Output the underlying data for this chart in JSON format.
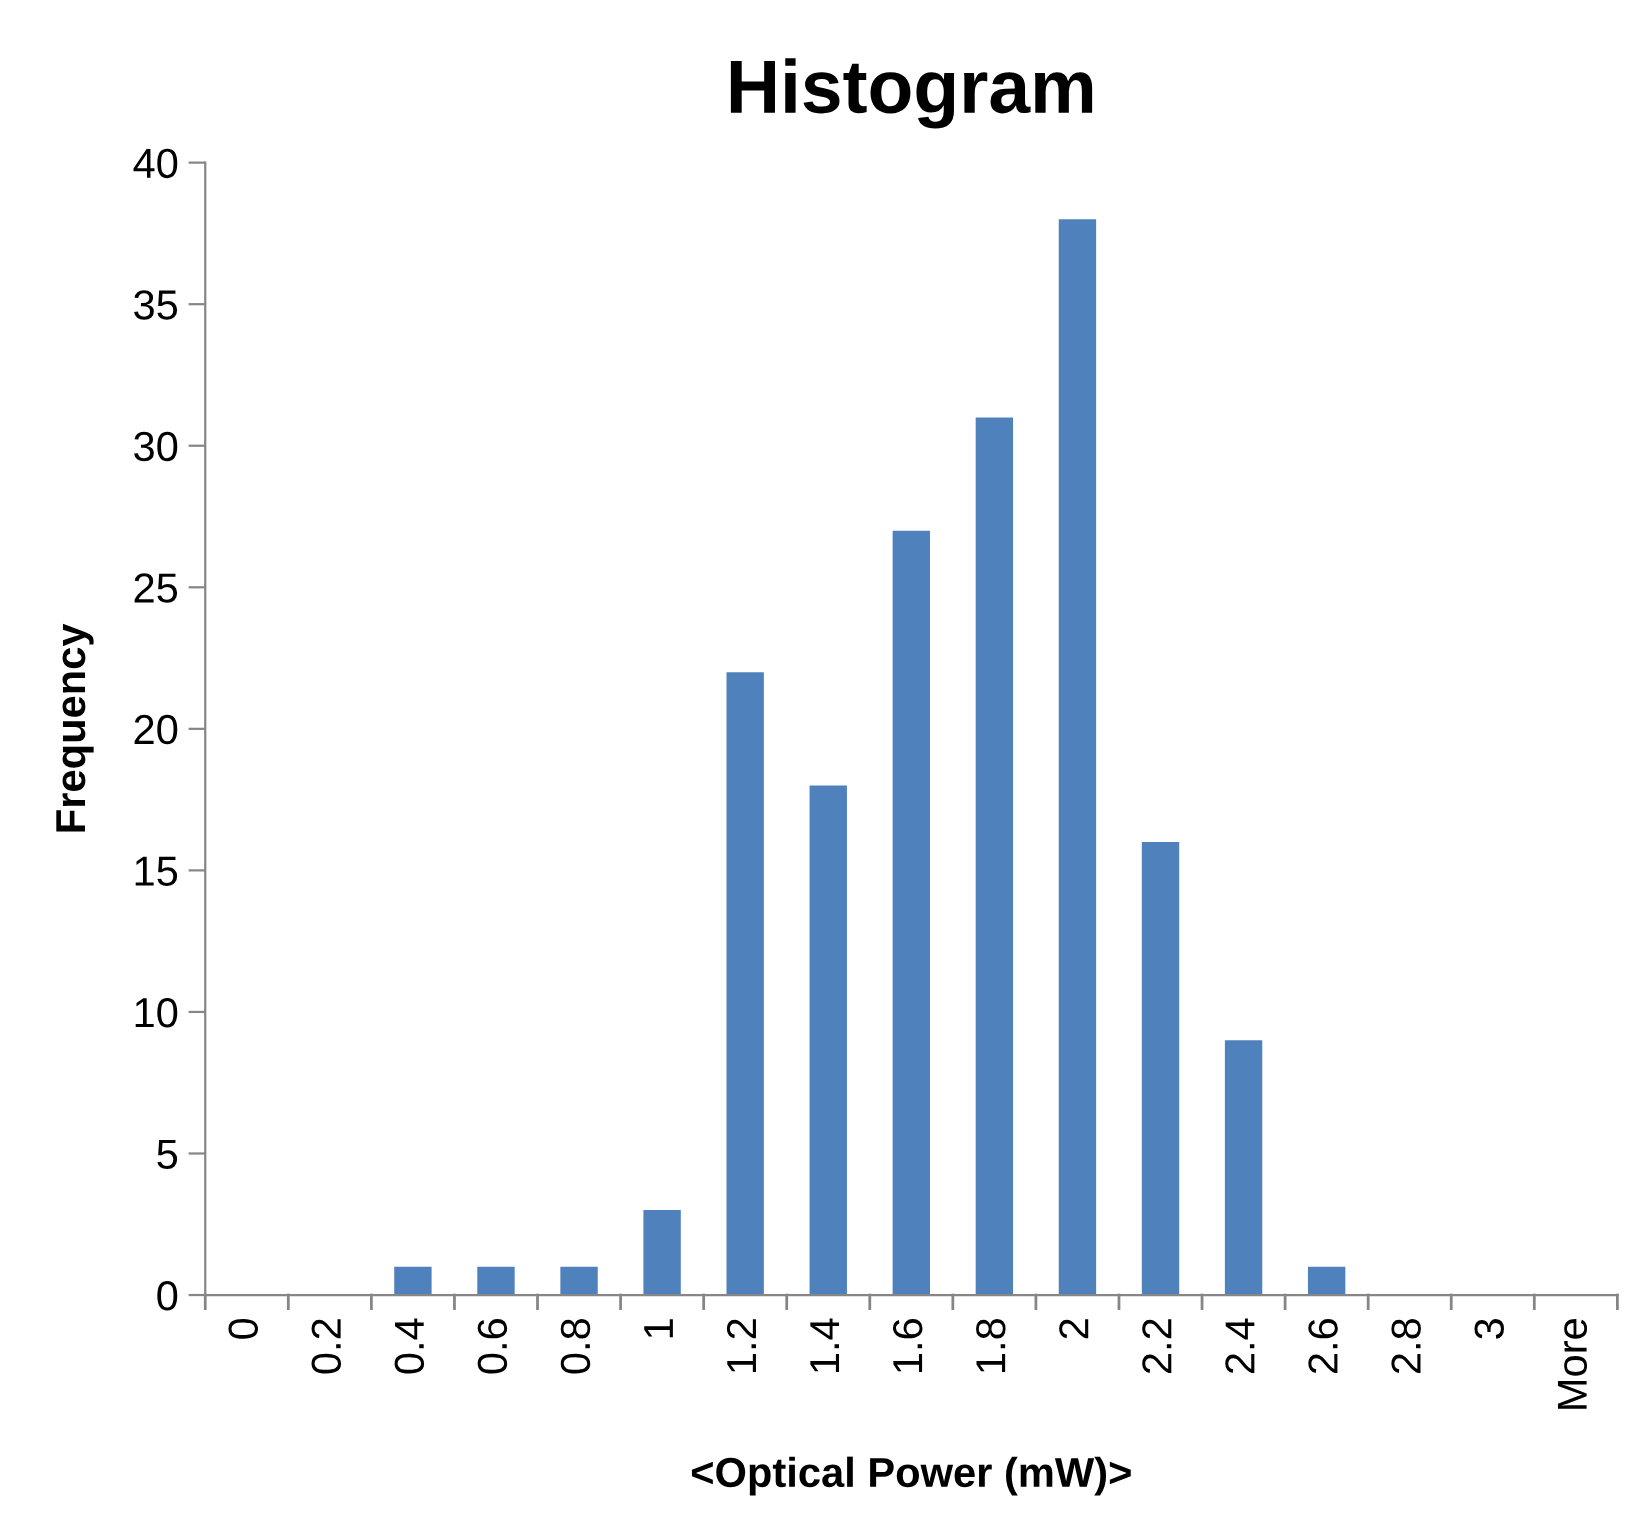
{
  "chart_data": {
    "type": "bar",
    "title": "Histogram",
    "xlabel": "<Optical Power (mW)>",
    "ylabel": "Frequency",
    "categories": [
      "0",
      "0.2",
      "0.4",
      "0.6",
      "0.8",
      "1",
      "1.2",
      "1.4",
      "1.6",
      "1.8",
      "2",
      "2.2",
      "2.4",
      "2.6",
      "2.8",
      "3",
      "More"
    ],
    "values": [
      0,
      0,
      1,
      1,
      1,
      3,
      22,
      18,
      27,
      31,
      38,
      16,
      9,
      1,
      0,
      0,
      0
    ],
    "color": "#4f81bd",
    "ylim": [
      0,
      40
    ],
    "yticks": [
      0,
      5,
      10,
      15,
      20,
      25,
      30,
      35,
      40
    ],
    "grid": false
  }
}
